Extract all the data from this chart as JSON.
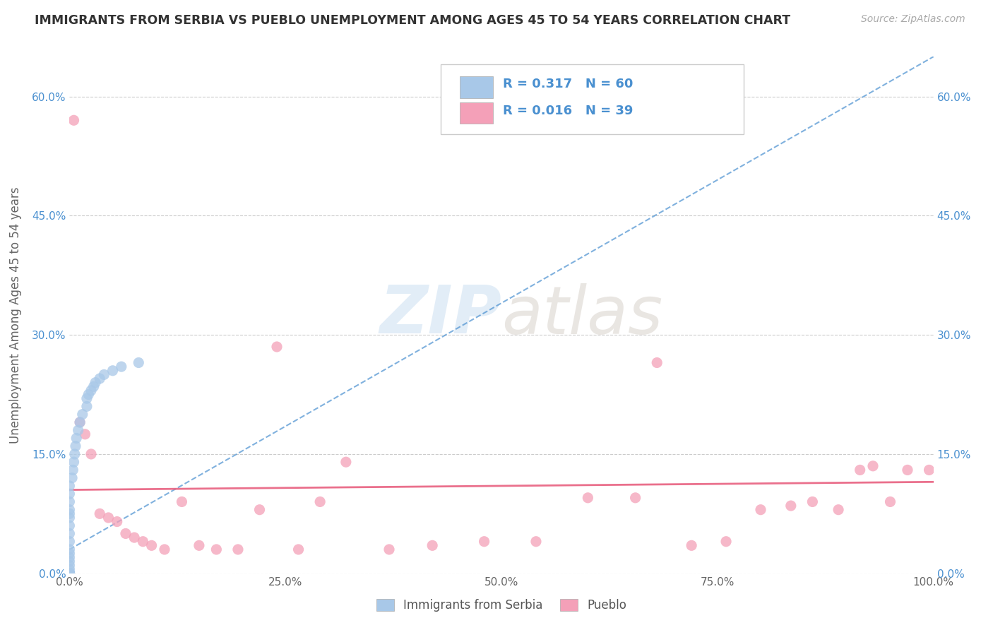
{
  "title": "IMMIGRANTS FROM SERBIA VS PUEBLO UNEMPLOYMENT AMONG AGES 45 TO 54 YEARS CORRELATION CHART",
  "source": "Source: ZipAtlas.com",
  "ylabel": "Unemployment Among Ages 45 to 54 years",
  "xlim": [
    0,
    100
  ],
  "ylim": [
    0,
    65
  ],
  "xticks": [
    0,
    25,
    50,
    75,
    100
  ],
  "xtick_labels": [
    "0.0%",
    "25.0%",
    "50.0%",
    "75.0%",
    "100.0%"
  ],
  "ytick_values": [
    0,
    15,
    30,
    45,
    60
  ],
  "ytick_labels": [
    "0.0%",
    "15.0%",
    "30.0%",
    "45.0%",
    "60.0%"
  ],
  "serbia_R": 0.317,
  "serbia_N": 60,
  "pueblo_R": 0.016,
  "pueblo_N": 39,
  "serbia_color": "#a8c8e8",
  "pueblo_color": "#f4a0b8",
  "serbia_line_color": "#4a90d0",
  "pueblo_line_color": "#e86080",
  "legend_label_1": "Immigrants from Serbia",
  "legend_label_2": "Pueblo",
  "watermark_zip": "ZIP",
  "watermark_atlas": "atlas",
  "background_color": "#ffffff",
  "grid_color": "#cccccc",
  "serbia_x": [
    0.0,
    0.0,
    0.0,
    0.0,
    0.0,
    0.0,
    0.0,
    0.0,
    0.0,
    0.0,
    0.0,
    0.0,
    0.0,
    0.0,
    0.0,
    0.0,
    0.0,
    0.0,
    0.0,
    0.0,
    0.0,
    0.0,
    0.0,
    0.0,
    0.0,
    0.0,
    0.0,
    0.0,
    0.0,
    0.0,
    0.0,
    0.0,
    0.0,
    0.0,
    0.0,
    0.0,
    0.0,
    0.0,
    0.0,
    0.0,
    0.3,
    0.4,
    0.5,
    0.6,
    0.7,
    0.8,
    1.0,
    1.2,
    1.5,
    2.0,
    2.0,
    2.2,
    2.5,
    2.8,
    3.0,
    3.5,
    4.0,
    5.0,
    6.0,
    8.0
  ],
  "serbia_y": [
    0.0,
    0.0,
    0.0,
    0.0,
    0.0,
    0.0,
    0.0,
    0.0,
    0.0,
    0.0,
    0.0,
    0.0,
    0.0,
    0.0,
    0.0,
    0.0,
    0.0,
    0.0,
    0.0,
    0.0,
    0.0,
    0.0,
    0.0,
    0.0,
    0.0,
    0.5,
    1.0,
    1.5,
    2.0,
    2.5,
    3.0,
    4.0,
    5.0,
    6.0,
    7.0,
    7.5,
    8.0,
    9.0,
    10.0,
    11.0,
    12.0,
    13.0,
    14.0,
    15.0,
    16.0,
    17.0,
    18.0,
    19.0,
    20.0,
    21.0,
    22.0,
    22.5,
    23.0,
    23.5,
    24.0,
    24.5,
    25.0,
    25.5,
    26.0,
    26.5
  ],
  "pueblo_x": [
    0.5,
    1.2,
    1.8,
    2.5,
    3.5,
    4.5,
    5.5,
    6.5,
    7.5,
    8.5,
    9.5,
    11.0,
    13.0,
    15.0,
    17.0,
    19.5,
    22.0,
    24.0,
    26.5,
    29.0,
    32.0,
    37.0,
    42.0,
    48.0,
    54.0,
    60.0,
    65.5,
    68.0,
    72.0,
    76.0,
    80.0,
    83.5,
    86.0,
    89.0,
    91.5,
    93.0,
    95.0,
    97.0,
    99.5
  ],
  "pueblo_y": [
    57.0,
    19.0,
    17.5,
    15.0,
    7.5,
    7.0,
    6.5,
    5.0,
    4.5,
    4.0,
    3.5,
    3.0,
    9.0,
    3.5,
    3.0,
    3.0,
    8.0,
    28.5,
    3.0,
    9.0,
    14.0,
    3.0,
    3.5,
    4.0,
    4.0,
    9.5,
    9.5,
    26.5,
    3.5,
    4.0,
    8.0,
    8.5,
    9.0,
    8.0,
    13.0,
    13.5,
    9.0,
    13.0,
    13.0
  ],
  "serbia_trend_x": [
    0.0,
    100.0
  ],
  "serbia_trend_y": [
    3.0,
    65.0
  ],
  "pueblo_trend_x": [
    0.0,
    100.0
  ],
  "pueblo_trend_y": [
    10.5,
    11.5
  ]
}
